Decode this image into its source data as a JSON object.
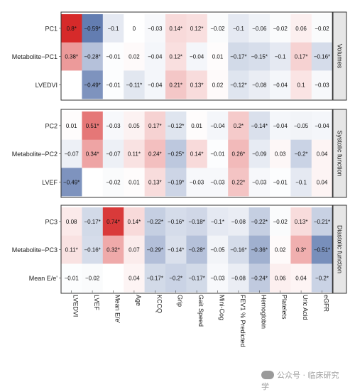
{
  "chart_data": {
    "type": "heatmap",
    "columns": [
      "LVEDVI",
      "LVEF",
      "Mean E/e'",
      "Age",
      "KCCQ",
      "Grip",
      "Gait Speed",
      "Mini-Cog",
      "FEV1 % Predicted",
      "Hemoglobin",
      "Platelets",
      "Uric Acid",
      "eGFR"
    ],
    "color_scale": {
      "negative": "#2c4f95",
      "zero": "#ffffff",
      "positive": "#d62a2a",
      "range": [
        -0.8,
        0.8
      ]
    },
    "panels": [
      {
        "title": "Volumes",
        "rows": [
          {
            "label": "PC1",
            "values": [
              0.8,
              -0.59,
              -0.1,
              0,
              -0.03,
              0.14,
              0.12,
              -0.02,
              -0.1,
              -0.06,
              -0.02,
              0.06,
              -0.02
            ],
            "labels": [
              "0.8*",
              "−0.59*",
              "−0.1",
              "0",
              "−0.03",
              "0.14*",
              "0.12*",
              "−0.02",
              "−0.1",
              "−0.06",
              "−0.02",
              "0.06",
              "−0.02"
            ]
          },
          {
            "label": "Metabolite−PC1",
            "values": [
              0.38,
              -0.28,
              -0.01,
              0.02,
              -0.04,
              0.12,
              -0.04,
              0.01,
              -0.17,
              -0.15,
              -0.1,
              0.17,
              -0.16
            ],
            "labels": [
              "0.38*",
              "−0.28*",
              "−0.01",
              "0.02",
              "−0.04",
              "0.12*",
              "−0.04",
              "0.01",
              "−0.17*",
              "−0.15*",
              "−0.1",
              "0.17*",
              "−0.16*"
            ]
          },
          {
            "label": "LVEDVI",
            "values": [
              null,
              -0.49,
              -0.01,
              -0.11,
              -0.04,
              0.21,
              0.13,
              0.02,
              -0.12,
              -0.08,
              -0.04,
              0.1,
              -0.03
            ],
            "labels": [
              "",
              "−0.49*",
              "−0.01",
              "−0.11*",
              "−0.04",
              "0.21*",
              "0.13*",
              "0.02",
              "−0.12*",
              "−0.08",
              "−0.04",
              "0.1",
              "−0.03"
            ]
          }
        ]
      },
      {
        "title": "Systolic function",
        "rows": [
          {
            "label": "PC2",
            "values": [
              0.01,
              0.51,
              -0.03,
              0.05,
              0.17,
              -0.12,
              0.01,
              -0.04,
              0.2,
              -0.14,
              -0.04,
              -0.05,
              -0.04
            ],
            "labels": [
              "0.01",
              "0.51*",
              "−0.03",
              "0.05",
              "0.17*",
              "−0.12*",
              "0.01",
              "−0.04",
              "0.2*",
              "−0.14*",
              "−0.04",
              "−0.05",
              "−0.04"
            ]
          },
          {
            "label": "Metabolite−PC2",
            "values": [
              -0.07,
              0.34,
              -0.07,
              0.11,
              0.24,
              -0.25,
              0.14,
              -0.01,
              0.26,
              -0.09,
              0.03,
              -0.2,
              0.04
            ],
            "labels": [
              "−0.07",
              "0.34*",
              "−0.07",
              "0.11*",
              "0.24*",
              "−0.25*",
              "0.14*",
              "−0.01",
              "0.26*",
              "−0.09",
              "0.03",
              "−0.2*",
              "0.04"
            ]
          },
          {
            "label": "LVEF",
            "values": [
              -0.49,
              null,
              -0.02,
              0.01,
              0.13,
              -0.19,
              -0.03,
              -0.03,
              0.22,
              -0.03,
              -0.01,
              -0.1,
              0.04
            ],
            "labels": [
              "−0.49*",
              "",
              "−0.02",
              "0.01",
              "0.13*",
              "−0.19*",
              "−0.03",
              "−0.03",
              "0.22*",
              "−0.03",
              "−0.01",
              "−0.1",
              "0.04"
            ]
          }
        ]
      },
      {
        "title": "Diastolic function",
        "rows": [
          {
            "label": "PC3",
            "values": [
              0.08,
              -0.17,
              0.74,
              0.14,
              -0.22,
              -0.16,
              -0.18,
              -0.1,
              -0.08,
              -0.22,
              -0.02,
              0.13,
              -0.21
            ],
            "labels": [
              "0.08",
              "−0.17*",
              "0.74*",
              "0.14*",
              "−0.22*",
              "−0.16*",
              "−0.18*",
              "−0.1*",
              "−0.08",
              "−0.22*",
              "−0.02",
              "0.13*",
              "−0.21*"
            ]
          },
          {
            "label": "Metabolite−PC3",
            "values": [
              0.11,
              -0.16,
              0.32,
              0.07,
              -0.29,
              -0.14,
              -0.28,
              -0.05,
              -0.16,
              -0.36,
              0.02,
              0.3,
              -0.51
            ],
            "labels": [
              "0.11*",
              "−0.16*",
              "0.32*",
              "0.07",
              "−0.29*",
              "−0.14*",
              "−0.28*",
              "−0.05",
              "−0.16*",
              "−0.36*",
              "0.02",
              "0.3*",
              "−0.51*"
            ]
          },
          {
            "label": "Mean E/e'",
            "values": [
              -0.01,
              -0.02,
              null,
              0.04,
              -0.17,
              -0.2,
              -0.17,
              -0.03,
              -0.08,
              -0.24,
              0.06,
              0.04,
              -0.2
            ],
            "labels": [
              "−0.01",
              "−0.02",
              "",
              "0.04",
              "−0.17*",
              "−0.2*",
              "−0.17*",
              "−0.03",
              "−0.08",
              "−0.24*",
              "0.06",
              "0.04",
              "−0.2*"
            ]
          }
        ]
      }
    ]
  },
  "watermark": {
    "text": "公众号 · 临床研究学"
  }
}
